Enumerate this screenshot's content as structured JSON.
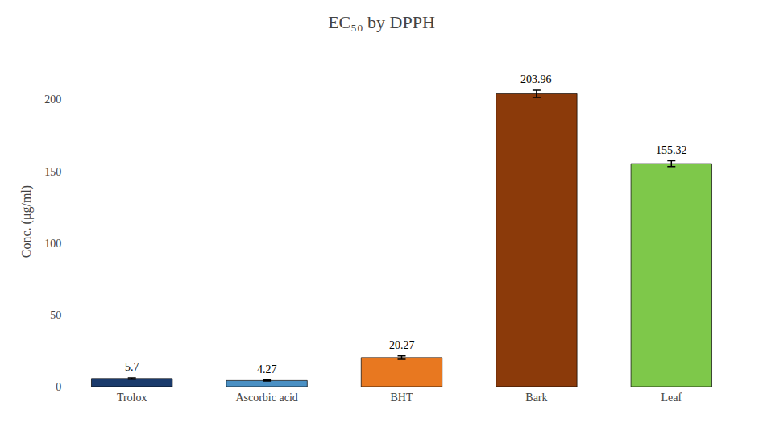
{
  "chart_data": {
    "type": "bar",
    "title": "EC₅₀ by DPPH",
    "ylabel": "Conc. (μg/ml)",
    "categories": [
      "Trolox",
      "Ascorbic acid",
      "BHT",
      "Bark",
      "Leaf"
    ],
    "values": [
      5.7,
      4.27,
      20.27,
      203.96,
      155.32
    ],
    "errors": [
      0.5,
      0.4,
      1.2,
      2.5,
      2.0
    ],
    "colors": [
      "#1a3a6b",
      "#4a90c4",
      "#e87820",
      "#8b3a0a",
      "#7ec84a"
    ],
    "ylim": [
      0,
      230
    ],
    "yticks": [
      0,
      50,
      100,
      150,
      200
    ],
    "grid": false,
    "data_labels": true
  }
}
